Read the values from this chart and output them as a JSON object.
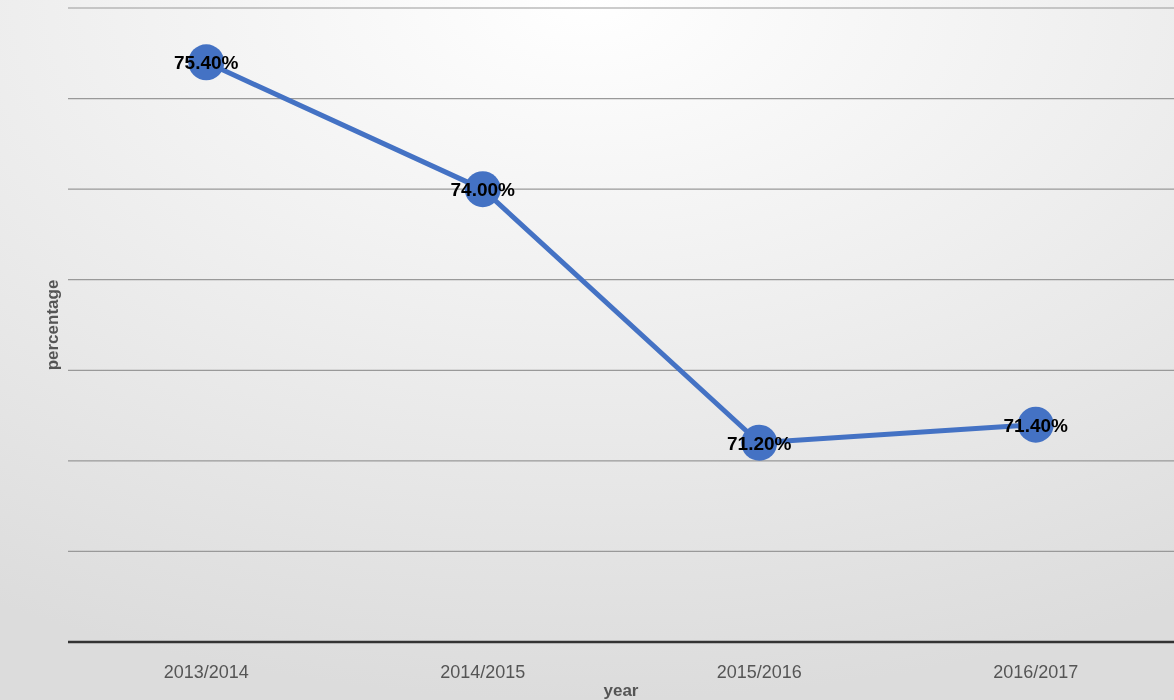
{
  "chart_data": {
    "type": "line",
    "xlabel": "year",
    "ylabel": "percentage",
    "categories": [
      "2013/2014",
      "2014/2015",
      "2015/2016",
      "2016/2017"
    ],
    "series": [
      {
        "color": "#4472c4",
        "values": [
          75.4,
          74.0,
          71.2,
          71.4
        ],
        "value_labels": [
          "75.40%",
          "74.00%",
          "71.20%",
          "71.40%"
        ]
      }
    ],
    "ylim": [
      69,
      76
    ],
    "yticks": [
      {
        "value": 69,
        "label": null
      },
      {
        "value": 70,
        "label": null
      },
      {
        "value": 71,
        "label": null
      },
      {
        "value": 72,
        "label": null
      },
      {
        "value": 73,
        "label": null
      },
      {
        "value": 74,
        "label": null
      },
      {
        "value": 75,
        "label": null
      },
      {
        "value": 76,
        "label": null
      }
    ],
    "grid": "y",
    "marker": "circle",
    "line_style": "solid",
    "tick_labels": "x"
  }
}
